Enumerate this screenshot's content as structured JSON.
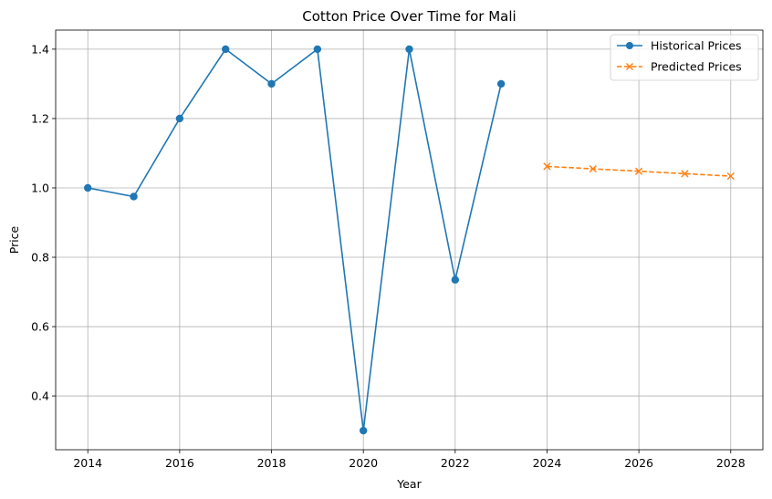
{
  "chart_data": {
    "type": "line",
    "title": "Cotton Price Over Time for Mali",
    "xlabel": "Year",
    "ylabel": "Price",
    "xlim": [
      2013.3,
      2028.7
    ],
    "ylim": [
      0.245,
      1.455
    ],
    "x_ticks": [
      2014,
      2016,
      2018,
      2020,
      2022,
      2024,
      2026,
      2028
    ],
    "y_ticks": [
      0.4,
      0.6,
      0.8,
      1.0,
      1.2,
      1.4
    ],
    "x_tick_labels": [
      "2014",
      "2016",
      "2018",
      "2020",
      "2022",
      "2024",
      "2026",
      "2028"
    ],
    "y_tick_labels": [
      "0.4",
      "0.6",
      "0.8",
      "1.0",
      "1.2",
      "1.4"
    ],
    "grid": true,
    "legend_position": "top-right",
    "series": [
      {
        "name": "Historical Prices",
        "color": "#1f77b4",
        "marker": "circle",
        "line_style": "solid",
        "x": [
          2014,
          2015,
          2016,
          2017,
          2018,
          2019,
          2020,
          2021,
          2022,
          2023
        ],
        "values": [
          1.0,
          0.975,
          1.2,
          1.4,
          1.3,
          1.4,
          0.3,
          1.4,
          0.735,
          1.3
        ]
      },
      {
        "name": "Predicted Prices",
        "color": "#ff7f0e",
        "marker": "x",
        "line_style": "dashed",
        "x": [
          2024,
          2025,
          2026,
          2027,
          2028
        ],
        "values": [
          1.062,
          1.055,
          1.048,
          1.041,
          1.034
        ]
      }
    ]
  }
}
